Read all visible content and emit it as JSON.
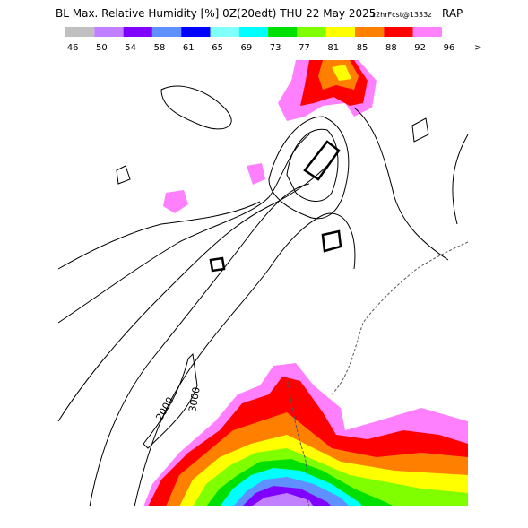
{
  "header": {
    "title": "BL Max. Relative Humidity [%] 0Z(20edt) THU 22 May 2025",
    "forecast": "12hrFcst@1333z",
    "model": "RAP"
  },
  "colorbar": {
    "labels": [
      "46",
      "50",
      "54",
      "58",
      "61",
      "65",
      "69",
      "73",
      "77",
      "81",
      "85",
      "88",
      "92",
      "96",
      ">"
    ],
    "colors": [
      "#c0c0c0",
      "#c080ff",
      "#8000ff",
      "#6090ff",
      "#0000ff",
      "#80ffff",
      "#00ffff",
      "#00e000",
      "#80ff00",
      "#ffff00",
      "#ff8000",
      "#ff0000",
      "#ff80ff"
    ]
  },
  "map": {
    "contour_labels": [
      "2000",
      "3000"
    ]
  }
}
